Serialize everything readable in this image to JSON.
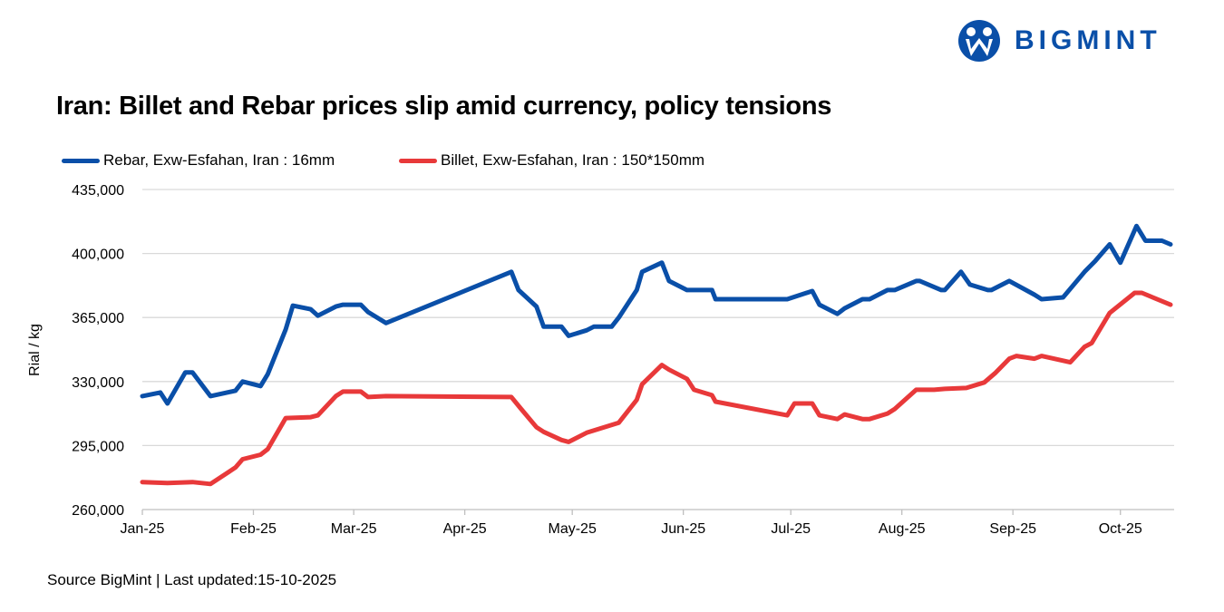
{
  "logo": {
    "text": "BIGMINT"
  },
  "chart_data": {
    "type": "line",
    "title": "Iran: Billet and Rebar prices slip amid currency, policy tensions",
    "xlabel": "",
    "ylabel": "Rial / kg",
    "ylim": [
      260000,
      435000
    ],
    "yticks": [
      260000,
      295000,
      330000,
      365000,
      400000,
      435000
    ],
    "ytick_labels": [
      "260,000",
      "295,000",
      "330,000",
      "365,000",
      "400,000",
      "435,000"
    ],
    "x_unit": "days since 2025-01-01",
    "xlim": [
      0,
      288
    ],
    "xticks": [
      0,
      31,
      59,
      90,
      120,
      151,
      181,
      212,
      243,
      273
    ],
    "xtick_labels": [
      "Jan-25",
      "Feb-25",
      "Mar-25",
      "Apr-25",
      "May-25",
      "Jun-25",
      "Jul-25",
      "Aug-25",
      "Sep-25",
      "Oct-25"
    ],
    "grid": true,
    "legend_position": "top-left",
    "series": [
      {
        "name": "Rebar, Exw-Esfahan, Iran : 16mm",
        "color": "#0a4fa8",
        "x": [
          0,
          5,
          7,
          12,
          14,
          19,
          26,
          28,
          33,
          35,
          40,
          42,
          47,
          49,
          54,
          56,
          61,
          63,
          68,
          103,
          105,
          110,
          112,
          117,
          119,
          124,
          126,
          131,
          133,
          138,
          139.5,
          145,
          147,
          152,
          159,
          160,
          180,
          187,
          189,
          194,
          196,
          201,
          203,
          208,
          210,
          216,
          217,
          223,
          224,
          228.5,
          231,
          236,
          237,
          242,
          249,
          251,
          257,
          263,
          266,
          270,
          273,
          277.5,
          280,
          284.6,
          287
        ],
        "values": [
          322000,
          324000,
          318000,
          335000,
          335000,
          322000,
          325000,
          330000,
          327500,
          334000,
          358500,
          371500,
          369500,
          366000,
          371000,
          372000,
          372000,
          368000,
          362000,
          390000,
          380000,
          371000,
          360000,
          360000,
          355000,
          358000,
          360000,
          360000,
          365000,
          380000,
          390000,
          395000,
          385000,
          380000,
          380000,
          375000,
          375000,
          379500,
          372000,
          367000,
          370000,
          375000,
          375000,
          380000,
          380000,
          385000,
          385000,
          380000,
          380000,
          390000,
          383000,
          380000,
          380000,
          385000,
          377500,
          375000,
          376000,
          390000,
          396000,
          405000,
          395000,
          415000,
          407000,
          407000,
          405000
        ]
      },
      {
        "name": "Billet, Exw-Esfahan, Iran : 150*150mm",
        "color": "#e8393a",
        "x": [
          0,
          7,
          14,
          19,
          26,
          28,
          33,
          35,
          40,
          47,
          49,
          54,
          56,
          61,
          63,
          68,
          103,
          105.5,
          110,
          112,
          117,
          119,
          124,
          133,
          138,
          139.5,
          145,
          147,
          152,
          154,
          159,
          160,
          180,
          182,
          187,
          189,
          194,
          196,
          201,
          203,
          208,
          210,
          216,
          221,
          224,
          230,
          235,
          238,
          242,
          244,
          249,
          251,
          259,
          263,
          265,
          270,
          277,
          279,
          287
        ],
        "values": [
          275000,
          274500,
          275000,
          274000,
          283000,
          287500,
          290000,
          293000,
          310000,
          310500,
          311500,
          322000,
          324500,
          324500,
          321500,
          322000,
          321500,
          315500,
          305000,
          302500,
          298000,
          297000,
          302000,
          307500,
          320000,
          328500,
          339000,
          336500,
          331500,
          325500,
          322500,
          319000,
          311500,
          318000,
          318000,
          311500,
          309500,
          312000,
          309500,
          309500,
          312500,
          315000,
          325500,
          325500,
          326000,
          326500,
          329500,
          334500,
          342500,
          344000,
          342500,
          344000,
          340500,
          349000,
          351000,
          367500,
          378500,
          378500,
          372000
        ]
      }
    ],
    "source": "Source BigMint | Last updated:15-10-2025"
  }
}
